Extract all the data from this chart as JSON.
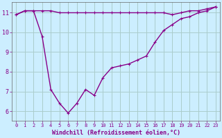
{
  "hours": [
    0,
    1,
    2,
    3,
    4,
    5,
    6,
    7,
    8,
    9,
    10,
    11,
    12,
    13,
    14,
    15,
    16,
    17,
    18,
    19,
    20,
    21,
    22,
    23
  ],
  "temp": [
    10.9,
    11.1,
    11.1,
    11.1,
    11.1,
    11.0,
    11.0,
    11.0,
    11.0,
    11.0,
    11.0,
    11.0,
    11.0,
    11.0,
    11.0,
    11.0,
    11.0,
    11.0,
    10.9,
    11.0,
    11.1,
    11.1,
    11.2,
    11.3
  ],
  "windchill": [
    10.9,
    11.1,
    11.1,
    9.8,
    7.1,
    6.4,
    5.9,
    6.4,
    7.1,
    6.8,
    7.7,
    8.2,
    8.3,
    8.4,
    8.6,
    8.8,
    9.5,
    10.1,
    10.4,
    10.7,
    10.8,
    11.0,
    11.1,
    11.3
  ],
  "bg_color": "#cceeff",
  "grid_color": "#aacccc",
  "line_color": "#880088",
  "xlabel": "Windchill (Refroidissement éolien,°C)",
  "ylim": [
    5.5,
    11.55
  ],
  "xlim": [
    -0.5,
    23.5
  ],
  "yticks": [
    6,
    7,
    8,
    9,
    10,
    11
  ],
  "xticks": [
    0,
    1,
    2,
    3,
    4,
    5,
    6,
    7,
    8,
    9,
    10,
    11,
    12,
    13,
    14,
    15,
    16,
    17,
    18,
    19,
    20,
    21,
    22,
    23
  ],
  "xlabel_fontsize": 6.0,
  "tick_fontsize": 5.0
}
